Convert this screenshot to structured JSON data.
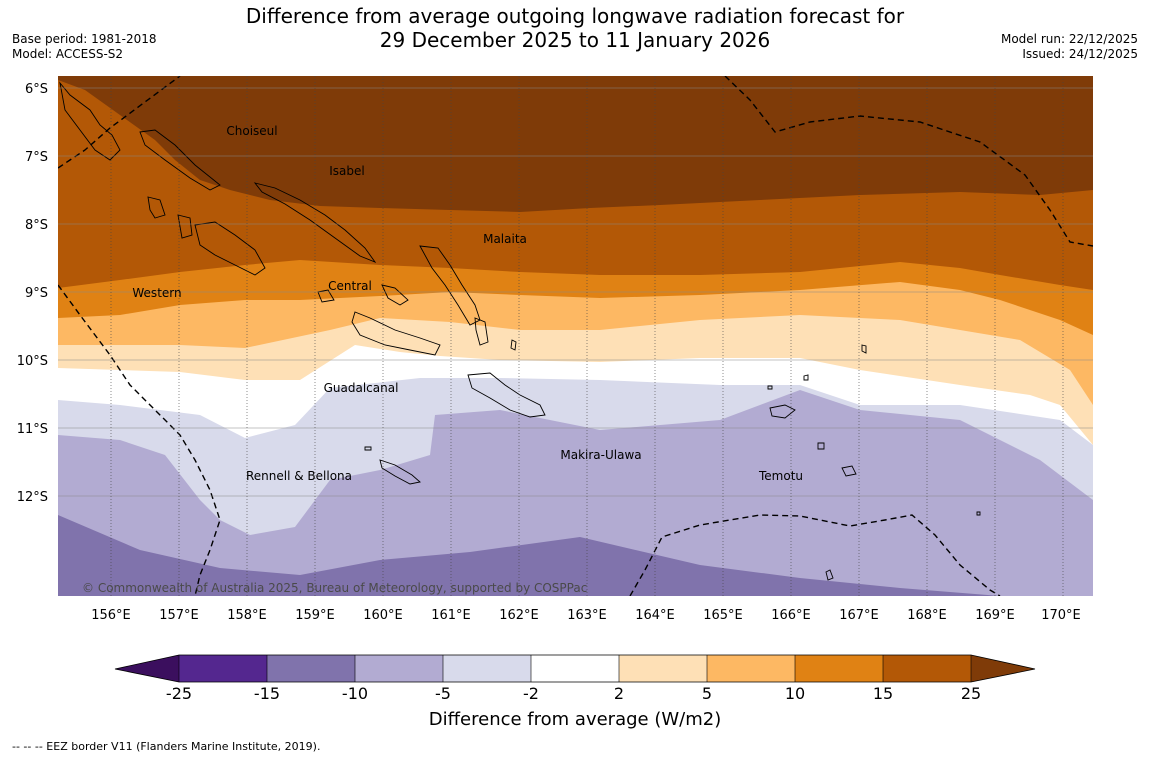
{
  "title": {
    "line1": "Difference from average outgoing longwave radiation forecast for",
    "line2": "29 December 2025 to 11 January 2026"
  },
  "meta_left": {
    "base_period": "Base period: 1981-2018",
    "model": "Model: ACCESS-S2"
  },
  "meta_right": {
    "model_run": "Model run: 22/12/2025",
    "issued": "Issued: 24/12/2025"
  },
  "map": {
    "lat_labels": [
      "6°S",
      "7°S",
      "8°S",
      "9°S",
      "10°S",
      "11°S",
      "12°S"
    ],
    "lon_labels": [
      "156°E",
      "157°E",
      "158°E",
      "159°E",
      "160°E",
      "161°E",
      "162°E",
      "163°E",
      "164°E",
      "165°E",
      "166°E",
      "167°E",
      "168°E",
      "169°E",
      "170°E"
    ],
    "regions": [
      "Choiseul",
      "Isabel",
      "Malaita",
      "Western",
      "Central",
      "Guadalcanal",
      "Makira-Ulawa",
      "Rennell & Bellona",
      "Temotu"
    ],
    "copyright": "© Commonwealth of Australia 2025, Bureau of Meteorology, supported by COSPPac"
  },
  "colorbar": {
    "ticks": [
      "-25",
      "-15",
      "-10",
      "-5",
      "-2",
      "2",
      "5",
      "10",
      "15",
      "25"
    ],
    "colors": [
      "#3b0f5e",
      "#54278f",
      "#8073ac",
      "#b2abd2",
      "#d8daeb",
      "#ffffff",
      "#fee0b6",
      "#fdb863",
      "#e08214",
      "#b35806",
      "#7f3b08"
    ],
    "label": "Difference from average (W/m2)"
  },
  "footer": {
    "eez_note": "--  --  -- EEZ border V11 (Flanders Marine Institute, 2019)."
  }
}
